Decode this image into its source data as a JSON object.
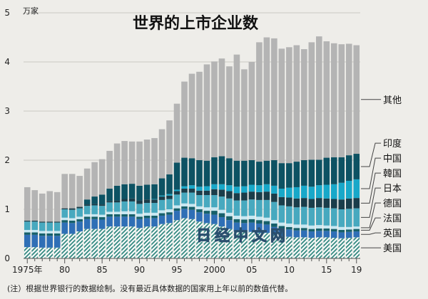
{
  "chart_data": {
    "type": "bar",
    "stacked": true,
    "title": "世界的上市企业数",
    "ylabel": "万家",
    "ylim": [
      0,
      5
    ],
    "yticks": [
      0,
      1,
      2,
      3,
      4,
      5
    ],
    "xtick_labels": [
      {
        "year": 1975,
        "label": "1975年"
      },
      {
        "year": 1980,
        "label": "80"
      },
      {
        "year": 1985,
        "label": "85"
      },
      {
        "year": 1990,
        "label": "90"
      },
      {
        "year": 1995,
        "label": "95"
      },
      {
        "year": 2000,
        "label": "2000"
      },
      {
        "year": 2005,
        "label": "05"
      },
      {
        "year": 2010,
        "label": "10"
      },
      {
        "year": 2015,
        "label": "15"
      },
      {
        "year": 2019,
        "label": "19"
      }
    ],
    "grid": true,
    "legend": "right",
    "watermark": "日经中文网",
    "note": "(注）根据世界银行的数据绘制。没有最近具体数据的国家用上年以前的数值代替。",
    "categories": [
      1975,
      1976,
      1977,
      1978,
      1979,
      1980,
      1981,
      1982,
      1983,
      1984,
      1985,
      1986,
      1987,
      1988,
      1989,
      1990,
      1991,
      1992,
      1993,
      1994,
      1995,
      1996,
      1997,
      1998,
      1999,
      2000,
      2001,
      2002,
      2003,
      2004,
      2005,
      2006,
      2007,
      2008,
      2009,
      2010,
      2011,
      2012,
      2013,
      2014,
      2015,
      2016,
      2017,
      2018,
      2019
    ],
    "series": [
      {
        "name": "美国",
        "color": "#3f8f87",
        "hatch": true,
        "values": [
          0.23,
          0.23,
          0.22,
          0.22,
          0.22,
          0.5,
          0.5,
          0.55,
          0.6,
          0.6,
          0.6,
          0.65,
          0.65,
          0.65,
          0.65,
          0.62,
          0.65,
          0.65,
          0.7,
          0.72,
          0.78,
          0.82,
          0.8,
          0.75,
          0.72,
          0.7,
          0.65,
          0.6,
          0.55,
          0.54,
          0.54,
          0.52,
          0.52,
          0.48,
          0.45,
          0.44,
          0.43,
          0.43,
          0.42,
          0.43,
          0.43,
          0.42,
          0.41,
          0.42,
          0.43
        ]
      },
      {
        "name": "英国",
        "color": "#2f6fb6",
        "values": [
          0.25,
          0.25,
          0.24,
          0.24,
          0.24,
          0.23,
          0.22,
          0.2,
          0.2,
          0.2,
          0.19,
          0.2,
          0.2,
          0.2,
          0.2,
          0.18,
          0.17,
          0.17,
          0.17,
          0.17,
          0.19,
          0.19,
          0.19,
          0.19,
          0.19,
          0.19,
          0.19,
          0.18,
          0.18,
          0.18,
          0.19,
          0.19,
          0.17,
          0.16,
          0.15,
          0.15,
          0.14,
          0.14,
          0.13,
          0.13,
          0.13,
          0.13,
          0.12,
          0.12,
          0.12
        ]
      },
      {
        "name": "法国",
        "color": "#16606a",
        "values": [
          0.05,
          0.05,
          0.05,
          0.05,
          0.05,
          0.05,
          0.05,
          0.05,
          0.05,
          0.05,
          0.05,
          0.05,
          0.05,
          0.05,
          0.05,
          0.05,
          0.05,
          0.05,
          0.05,
          0.05,
          0.05,
          0.05,
          0.06,
          0.06,
          0.06,
          0.08,
          0.08,
          0.08,
          0.07,
          0.07,
          0.07,
          0.07,
          0.07,
          0.07,
          0.06,
          0.05,
          0.05,
          0.05,
          0.05,
          0.05,
          0.05,
          0.05,
          0.05,
          0.05,
          0.05
        ]
      },
      {
        "name": "德国",
        "color": "#c6e8f3",
        "values": [
          0.05,
          0.05,
          0.05,
          0.05,
          0.05,
          0.05,
          0.05,
          0.05,
          0.05,
          0.05,
          0.05,
          0.05,
          0.05,
          0.06,
          0.06,
          0.06,
          0.06,
          0.06,
          0.06,
          0.06,
          0.06,
          0.06,
          0.06,
          0.06,
          0.07,
          0.07,
          0.07,
          0.07,
          0.07,
          0.07,
          0.07,
          0.07,
          0.07,
          0.07,
          0.07,
          0.07,
          0.07,
          0.07,
          0.07,
          0.07,
          0.06,
          0.06,
          0.06,
          0.05,
          0.05
        ]
      },
      {
        "name": "日本",
        "color": "#47a9bf",
        "values": [
          0.17,
          0.17,
          0.17,
          0.17,
          0.17,
          0.17,
          0.17,
          0.17,
          0.17,
          0.18,
          0.18,
          0.19,
          0.19,
          0.2,
          0.2,
          0.2,
          0.2,
          0.2,
          0.21,
          0.21,
          0.22,
          0.22,
          0.23,
          0.23,
          0.25,
          0.25,
          0.27,
          0.29,
          0.31,
          0.32,
          0.33,
          0.34,
          0.36,
          0.37,
          0.35,
          0.35,
          0.35,
          0.36,
          0.36,
          0.36,
          0.36,
          0.36,
          0.36,
          0.37,
          0.37
        ]
      },
      {
        "name": "韓国",
        "color": "#1a3d4a",
        "values": [
          0.02,
          0.02,
          0.02,
          0.02,
          0.02,
          0.02,
          0.03,
          0.03,
          0.03,
          0.03,
          0.03,
          0.03,
          0.04,
          0.05,
          0.06,
          0.07,
          0.07,
          0.07,
          0.07,
          0.07,
          0.07,
          0.08,
          0.08,
          0.09,
          0.09,
          0.12,
          0.14,
          0.15,
          0.15,
          0.16,
          0.16,
          0.16,
          0.17,
          0.17,
          0.17,
          0.18,
          0.18,
          0.18,
          0.18,
          0.19,
          0.19,
          0.19,
          0.2,
          0.21,
          0.21
        ]
      },
      {
        "name": "中国",
        "color": "#18a8c9",
        "values": [
          0.0,
          0.0,
          0.0,
          0.0,
          0.0,
          0.0,
          0.0,
          0.0,
          0.0,
          0.0,
          0.0,
          0.0,
          0.0,
          0.0,
          0.0,
          0.0,
          0.0,
          0.01,
          0.02,
          0.03,
          0.03,
          0.05,
          0.07,
          0.08,
          0.09,
          0.1,
          0.11,
          0.12,
          0.13,
          0.13,
          0.14,
          0.14,
          0.15,
          0.16,
          0.17,
          0.2,
          0.23,
          0.25,
          0.25,
          0.26,
          0.28,
          0.3,
          0.34,
          0.36,
          0.38
        ]
      },
      {
        "name": "印度",
        "color": "#0d5263",
        "values": [
          0.0,
          0.0,
          0.0,
          0.0,
          0.0,
          0.0,
          0.0,
          0.0,
          0.1,
          0.15,
          0.2,
          0.25,
          0.3,
          0.3,
          0.3,
          0.3,
          0.3,
          0.3,
          0.35,
          0.4,
          0.55,
          0.58,
          0.55,
          0.54,
          0.52,
          0.55,
          0.57,
          0.55,
          0.53,
          0.52,
          0.5,
          0.48,
          0.48,
          0.52,
          0.52,
          0.5,
          0.52,
          0.52,
          0.55,
          0.52,
          0.55,
          0.55,
          0.52,
          0.52,
          0.52
        ]
      },
      {
        "name": "其他",
        "color": "#b4b4b4",
        "values": [
          0.68,
          0.62,
          0.57,
          0.62,
          0.6,
          0.7,
          0.7,
          0.63,
          0.63,
          0.7,
          0.72,
          0.77,
          0.86,
          0.88,
          0.86,
          0.9,
          0.92,
          0.94,
          1.0,
          1.1,
          1.2,
          1.55,
          1.72,
          1.8,
          1.96,
          1.95,
          1.99,
          1.87,
          2.16,
          1.86,
          2.0,
          2.43,
          2.51,
          2.48,
          2.33,
          2.36,
          2.37,
          2.26,
          2.39,
          2.51,
          2.37,
          2.32,
          2.3,
          2.27,
          2.21
        ]
      }
    ]
  }
}
